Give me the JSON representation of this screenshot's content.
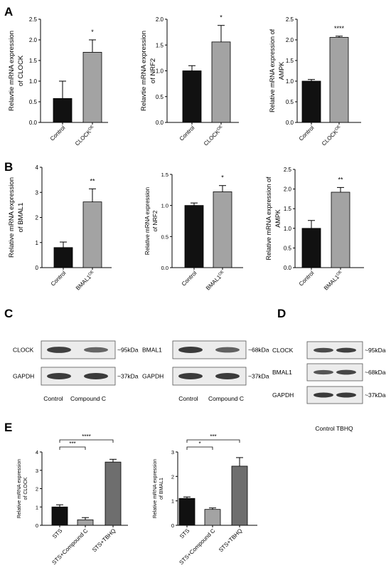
{
  "panel_labels": [
    "A",
    "B",
    "C",
    "D",
    "E"
  ],
  "chart_data": [
    {
      "id": "A1",
      "panel": "A",
      "type": "bar",
      "categories": [
        "Control",
        "CLOCK"
      ],
      "category_superscripts": [
        "",
        "OE"
      ],
      "values": [
        0.58,
        1.7
      ],
      "errors": [
        0.42,
        0.3
      ],
      "bar_colors": [
        "#111111",
        "#a3a3a3"
      ],
      "significance": [
        {
          "label": "*",
          "bar": 1
        }
      ],
      "ylabel_lines": [
        "Relavtie mRNA expression",
        "of CLOCK"
      ],
      "ylim": [
        0,
        2.5
      ],
      "yticks": [
        "0.0",
        "0.5",
        "1.0",
        "1.5",
        "2.0",
        "2.5"
      ]
    },
    {
      "id": "A2",
      "panel": "A",
      "type": "bar",
      "categories": [
        "Control",
        "CLOCK"
      ],
      "category_superscripts": [
        "",
        "OE"
      ],
      "values": [
        1.0,
        1.56
      ],
      "errors": [
        0.1,
        0.32
      ],
      "bar_colors": [
        "#111111",
        "#a3a3a3"
      ],
      "significance": [
        {
          "label": "*",
          "bar": 1
        }
      ],
      "ylabel_lines": [
        "Relavtie mRNA expression",
        "of NRF2"
      ],
      "ylim": [
        0,
        2.0
      ],
      "yticks": [
        "0.0",
        "0.5",
        "1.0",
        "1.5",
        "2.0"
      ]
    },
    {
      "id": "A3",
      "panel": "A",
      "type": "bar",
      "categories": [
        "Control",
        "CLOCK"
      ],
      "category_superscripts": [
        "",
        "OE"
      ],
      "values": [
        1.0,
        2.06
      ],
      "errors": [
        0.04,
        0.03
      ],
      "bar_colors": [
        "#111111",
        "#a3a3a3"
      ],
      "significance": [
        {
          "label": "****",
          "bar": 1
        }
      ],
      "ylabel_lines": [
        "Relative mRNA expression of",
        "AMPK"
      ],
      "ylim": [
        0,
        2.5
      ],
      "yticks": [
        "0.0",
        "0.5",
        "1.0",
        "1.5",
        "2.0",
        "2.5"
      ]
    },
    {
      "id": "B1",
      "panel": "B",
      "type": "bar",
      "categories": [
        "Control",
        "BMAL1"
      ],
      "category_superscripts": [
        "",
        "OE"
      ],
      "values": [
        0.8,
        2.62
      ],
      "errors": [
        0.22,
        0.52
      ],
      "bar_colors": [
        "#111111",
        "#a3a3a3"
      ],
      "significance": [
        {
          "label": "**",
          "bar": 1
        }
      ],
      "ylabel_lines": [
        "Relative mRNA expression",
        "of BMAL1"
      ],
      "ylim": [
        0,
        4
      ],
      "yticks": [
        "0",
        "1",
        "2",
        "3",
        "4"
      ]
    },
    {
      "id": "B2",
      "panel": "B",
      "type": "bar",
      "categories": [
        "Control",
        "BMAL1"
      ],
      "category_superscripts": [
        "",
        "OE"
      ],
      "values": [
        1.0,
        1.22
      ],
      "errors": [
        0.04,
        0.1
      ],
      "bar_colors": [
        "#111111",
        "#a3a3a3"
      ],
      "significance": [
        {
          "label": "*",
          "bar": 1
        }
      ],
      "ylabel_lines": [
        "Relative mRNA expression",
        "of NRF2"
      ],
      "ylim": [
        0,
        1.5
      ],
      "yticks": [
        "0.0",
        "0.5",
        "1.0",
        "1.5"
      ]
    },
    {
      "id": "B3",
      "panel": "B",
      "type": "bar",
      "categories": [
        "Control",
        "BMAL1"
      ],
      "category_superscripts": [
        "",
        "OE"
      ],
      "values": [
        1.0,
        1.92
      ],
      "errors": [
        0.2,
        0.12
      ],
      "bar_colors": [
        "#111111",
        "#a3a3a3"
      ],
      "significance": [
        {
          "label": "**",
          "bar": 1
        }
      ],
      "ylabel_lines": [
        "Relative mRNA expression of",
        "AMPK"
      ],
      "ylim": [
        0,
        2.5
      ],
      "yticks": [
        "0.0",
        "0.5",
        "1.0",
        "1.5",
        "2.0",
        "2.5"
      ]
    },
    {
      "id": "E1",
      "panel": "E",
      "type": "bar",
      "categories": [
        "STS",
        "STS+Compound C",
        "STS+TBHQ"
      ],
      "category_superscripts": [
        "",
        "",
        ""
      ],
      "values": [
        1.0,
        0.3,
        3.45
      ],
      "errors": [
        0.12,
        0.12,
        0.15
      ],
      "bar_colors": [
        "#111111",
        "#a3a3a3",
        "#6e6e6e"
      ],
      "significance": [
        {
          "label": "***",
          "from": 0,
          "to": 1,
          "level": 1
        },
        {
          "label": "****",
          "from": 0,
          "to": 2,
          "level": 2
        }
      ],
      "ylabel_lines": [
        "Relative mRNA expression",
        "of CLOCK"
      ],
      "ylim": [
        0,
        4
      ],
      "yticks": [
        "0",
        "1",
        "2",
        "3",
        "4"
      ]
    },
    {
      "id": "E2",
      "panel": "E",
      "type": "bar",
      "categories": [
        "STS",
        "STS+Compound C",
        "STS+TBHQ"
      ],
      "category_superscripts": [
        "",
        "",
        ""
      ],
      "values": [
        1.1,
        0.65,
        2.42
      ],
      "errors": [
        0.06,
        0.06,
        0.35
      ],
      "bar_colors": [
        "#111111",
        "#a3a3a3",
        "#6e6e6e"
      ],
      "significance": [
        {
          "label": "*",
          "from": 0,
          "to": 1,
          "level": 1
        },
        {
          "label": "***",
          "from": 0,
          "to": 2,
          "level": 2
        }
      ],
      "ylabel_lines": [
        "Relative mRNA expression",
        "of BMAL1"
      ],
      "ylim": [
        0,
        3
      ],
      "yticks": [
        "0",
        "1",
        "2",
        "3"
      ]
    }
  ],
  "blots": {
    "C1": {
      "bands": [
        {
          "label": "CLOCK",
          "size": "~95kDa",
          "intensities": [
            0.95,
            0.6
          ]
        },
        {
          "label": "GAPDH",
          "size": "~37kDa",
          "intensities": [
            1.0,
            1.0
          ]
        }
      ],
      "lane_labels": [
        "Control",
        "Compound C"
      ]
    },
    "C2": {
      "bands": [
        {
          "label": "BMAL1",
          "size": "~68kDa",
          "intensities": [
            1.0,
            0.65
          ]
        },
        {
          "label": "GAPDH",
          "size": "~37kDa",
          "intensities": [
            1.0,
            1.0
          ]
        }
      ],
      "lane_labels": [
        "Control",
        "Compound C"
      ]
    },
    "D": {
      "bands": [
        {
          "label": "CLOCK",
          "size": "~95kDa",
          "intensities": [
            0.85,
            0.95
          ]
        },
        {
          "label": "BMAL1",
          "size": "~68kDa",
          "intensities": [
            0.75,
            0.9
          ]
        },
        {
          "label": "GAPDH",
          "size": "~37kDa",
          "intensities": [
            1.0,
            1.0
          ]
        }
      ],
      "lane_labels_text": "Control TBHQ"
    }
  }
}
